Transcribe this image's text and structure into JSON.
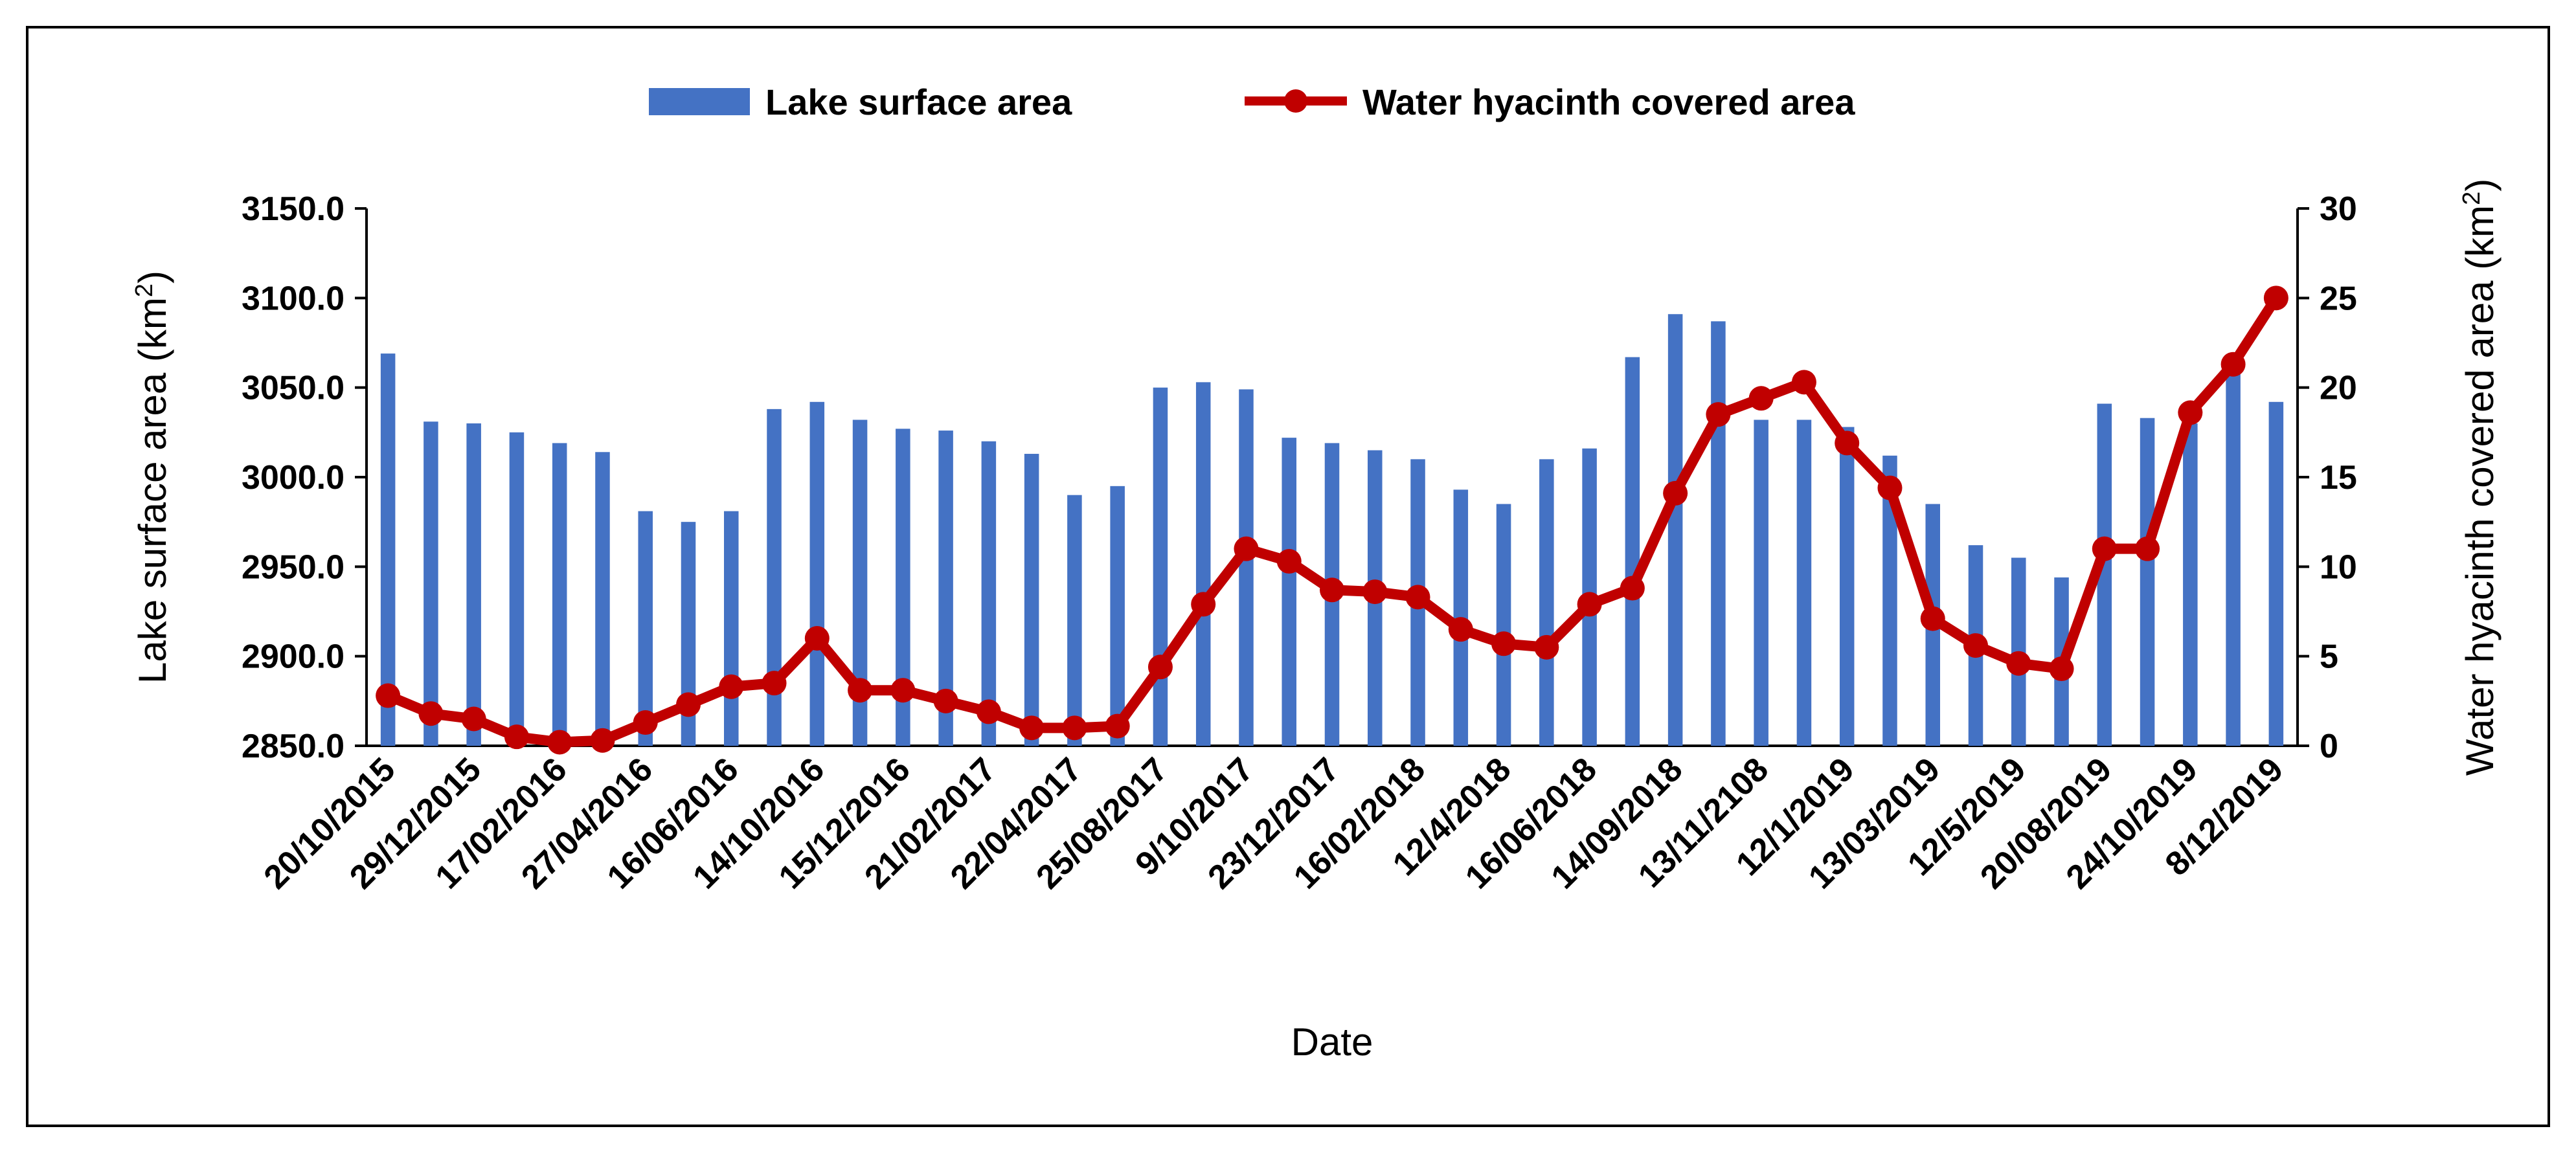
{
  "chart_data": {
    "type": "bar+line",
    "xlabel": "Date",
    "ylabel_left": "Lake surface area (km",
    "ylabel_left_sup": "2",
    "ylabel_right": "Water hyacinth covered area (km",
    "ylabel_right_sup": "2",
    "ylim_left": [
      2850,
      3150
    ],
    "ylim_right": [
      0,
      30
    ],
    "yticks_left": [
      "2850.0",
      "2900.0",
      "2950.0",
      "3000.0",
      "3050.0",
      "3100.0",
      "3150.0"
    ],
    "yticks_right": [
      "0",
      "5",
      "10",
      "15",
      "20",
      "25",
      "30"
    ],
    "legend_position": "top-center",
    "categories": [
      "20/10/2015",
      "",
      "29/12/2015",
      "",
      "17/02/2016",
      "",
      "27/04/2016",
      "",
      "16/06/2016",
      "",
      "14/10/2016",
      "",
      "15/12/2016",
      "",
      "21/02/2017",
      "",
      "22/04/2017",
      "",
      "25/08/2017",
      "",
      "9/10/2017",
      "",
      "23/12/2017",
      "",
      "16/02/2018",
      "",
      "12/4/2018",
      "",
      "16/06/2018",
      "",
      "14/09/2018",
      "",
      "13/11/2108",
      "",
      "12/1/2019",
      "",
      "13/03/2019",
      "",
      "12/5/2019",
      "",
      "20/08/2019",
      "",
      "24/10/2019",
      "",
      "8/12/2019"
    ],
    "series": [
      {
        "name": "Lake surface area",
        "type": "bar",
        "axis": "left",
        "color": "#4472C4",
        "values": [
          3069,
          3031,
          3030,
          3025,
          3019,
          3014,
          2981,
          2975,
          2981,
          3038,
          3042,
          3032,
          3027,
          3026,
          3020,
          3013,
          2990,
          2995,
          3050,
          3053,
          3049,
          3022,
          3019,
          3015,
          3010,
          2993,
          2985,
          3010,
          3016,
          3067,
          3091,
          3087,
          3032,
          3032,
          3028,
          3012,
          2985,
          2962,
          2955,
          2944,
          3041,
          3033,
          3030,
          3060,
          3042
        ]
      },
      {
        "name": "Water hyacinth covered area",
        "type": "line",
        "axis": "right",
        "color": "#C00000",
        "values": [
          2.8,
          1.8,
          1.5,
          0.5,
          0.2,
          0.3,
          1.3,
          2.3,
          3.3,
          3.5,
          6.0,
          3.1,
          3.1,
          2.5,
          1.9,
          1.0,
          1.0,
          1.1,
          4.4,
          7.9,
          11.0,
          10.3,
          8.7,
          8.6,
          8.3,
          6.5,
          5.7,
          5.5,
          7.9,
          8.8,
          14.1,
          18.5,
          19.4,
          20.3,
          16.9,
          14.4,
          7.1,
          5.6,
          4.6,
          4.3,
          11.0,
          11.0,
          18.6,
          21.3,
          25.0
        ]
      }
    ]
  }
}
